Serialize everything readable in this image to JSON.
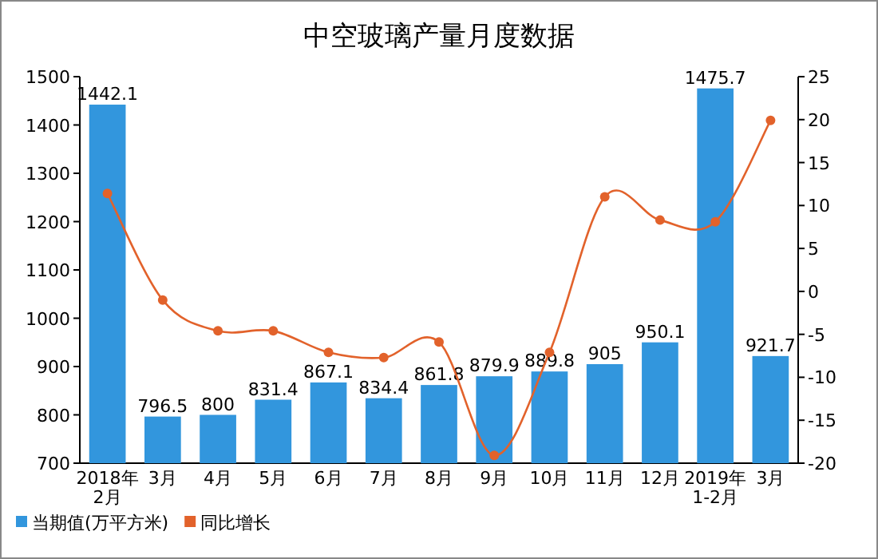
{
  "chart_data": {
    "type": "bar",
    "title": "中空玻璃产量月度数据",
    "categories": [
      "2018年2月",
      "3月",
      "4月",
      "5月",
      "6月",
      "7月",
      "8月",
      "9月",
      "10月",
      "11月",
      "12月",
      "2019年1-2月",
      "3月"
    ],
    "series": [
      {
        "name": "当期值(万平方米)",
        "color": "#3296dd",
        "values": [
          1442.1,
          796.5,
          800,
          831.4,
          867.1,
          834.4,
          861.8,
          879.9,
          889.8,
          905,
          950.1,
          1475.7,
          921.7
        ],
        "value_labels": [
          "1442.1",
          "796.5",
          "800",
          "831.4",
          "867.1",
          "834.4",
          "861.8",
          "879.9",
          "889.8",
          "905",
          "950.1",
          "1475.7",
          "921.7"
        ]
      },
      {
        "name": "同比增长",
        "color": "#e2622b",
        "type": "line",
        "axis": "y2",
        "marker": "circle",
        "values": [
          11.4,
          -1.0,
          -4.6,
          -4.6,
          -7.1,
          -7.7,
          -5.9,
          -19.1,
          -7.1,
          11.0,
          8.3,
          8.1,
          19.9
        ]
      }
    ],
    "ylim": [
      700,
      1500
    ],
    "yticks": [
      700,
      800,
      900,
      1000,
      1100,
      1200,
      1300,
      1400,
      1500
    ],
    "y2lim": [
      -20,
      25
    ],
    "y2ticks": [
      -20,
      -15,
      -10,
      -5,
      0,
      5,
      10,
      15,
      20,
      25
    ],
    "legend": "bottom left",
    "grid": false
  }
}
